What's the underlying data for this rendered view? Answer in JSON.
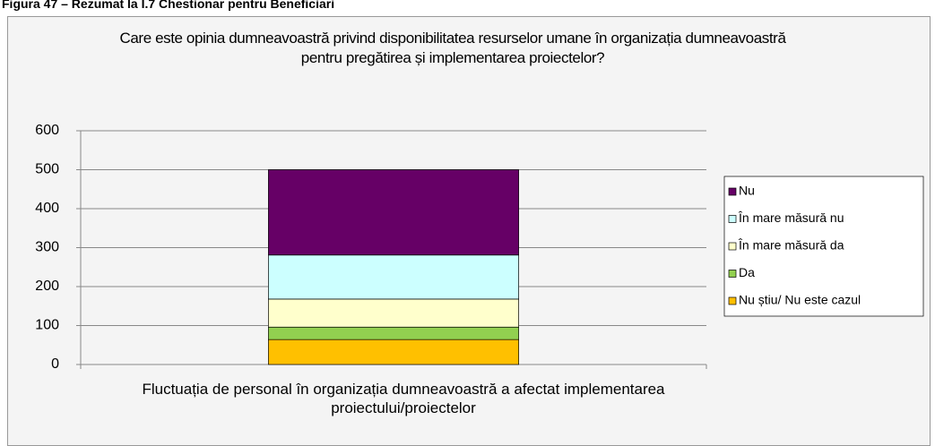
{
  "heading": "Figura 47 – Rezumat la I.7 Chestionar pentru Beneficiari",
  "chart_data": {
    "type": "stacked_bar",
    "title": "Care este opinia dumneavoastră privind disponibilitatea resurselor umane în organizația dumneavoastră pentru pregătirea și implementarea proiectelor?",
    "categories": [
      "Fluctuația de personal în organizația dumneavoastră a afectat implementarea proiectului/proiectelor"
    ],
    "series": [
      {
        "name": "Nu știu/ Nu este cazul",
        "color": "#ffc000",
        "values": [
          64
        ]
      },
      {
        "name": "Da",
        "color": "#92d050",
        "values": [
          32
        ]
      },
      {
        "name": "În mare măsură da",
        "color": "#ffffcc",
        "values": [
          72
        ]
      },
      {
        "name": "În mare măsură nu",
        "color": "#ccffff",
        "values": [
          113
        ]
      },
      {
        "name": "Nu",
        "color": "#660066",
        "values": [
          219
        ]
      }
    ],
    "ylim": [
      0,
      600
    ],
    "yticks": [
      0,
      100,
      200,
      300,
      400,
      500,
      600
    ],
    "grid": true,
    "legend": "right"
  }
}
